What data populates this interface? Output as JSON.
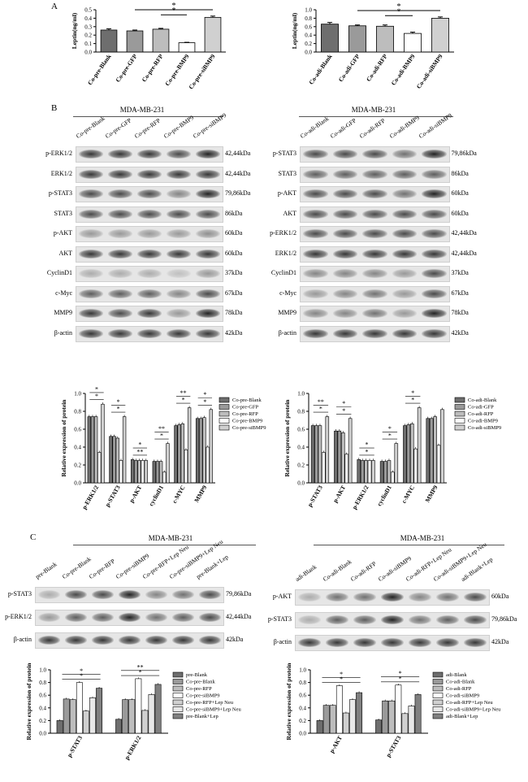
{
  "panel_letters": {
    "a": "A",
    "b": "B",
    "c": "C"
  },
  "titles": {
    "b_left": "MDA-MB-231",
    "b_right": "MDA-MB-231",
    "c_left": "MDA-MB-231",
    "c_right": "MDA-MB-231"
  },
  "blot_b_left": {
    "lanes": [
      "Co-pre-Blank",
      "Co-pre-GFP",
      "Co-pre-RFP",
      "Co-pre-BMP9",
      "Co-pre-siBMP9"
    ],
    "rows": [
      {
        "name": "p-ERK1/2",
        "kda": "42,44kDa",
        "intensity": [
          0.9,
          0.9,
          0.9,
          0.8,
          1.0
        ]
      },
      {
        "name": "ERK1/2",
        "kda": "42,44kDa",
        "intensity": [
          0.9,
          0.9,
          0.9,
          0.9,
          0.9
        ]
      },
      {
        "name": "p-STAT3",
        "kda": "79,86kDa",
        "intensity": [
          0.8,
          0.8,
          0.8,
          0.5,
          1.0
        ]
      },
      {
        "name": "STAT3",
        "kda": "86kDa",
        "intensity": [
          0.8,
          0.8,
          0.8,
          0.8,
          0.8
        ]
      },
      {
        "name": "p-AKT",
        "kda": "60kDa",
        "intensity": [
          0.4,
          0.4,
          0.4,
          0.4,
          0.45
        ]
      },
      {
        "name": "AKT",
        "kda": "60kDa",
        "intensity": [
          0.9,
          0.9,
          0.9,
          0.9,
          0.9
        ]
      },
      {
        "name": "CyclinD1",
        "kda": "37kDa",
        "intensity": [
          0.3,
          0.3,
          0.3,
          0.2,
          0.4
        ]
      },
      {
        "name": "c-Myc",
        "kda": "67kDa",
        "intensity": [
          0.7,
          0.7,
          0.7,
          0.5,
          0.8
        ]
      },
      {
        "name": "MMP9",
        "kda": "78kDa",
        "intensity": [
          0.9,
          0.8,
          0.9,
          0.4,
          1.0
        ]
      },
      {
        "name": "β-actin",
        "kda": "42kDa",
        "intensity": [
          0.9,
          0.9,
          0.9,
          0.9,
          0.9
        ]
      }
    ]
  },
  "blot_b_right": {
    "lanes": [
      "Co-adi-Blank",
      "Co-adi-GFP",
      "Co-adi-RFP",
      "Co-adi-BMP9",
      "Co-adi-siBMP9"
    ],
    "rows": [
      {
        "name": "p-STAT3",
        "kda": "79,86kDa",
        "intensity": [
          0.8,
          0.8,
          0.8,
          0.6,
          1.0
        ]
      },
      {
        "name": "STAT3",
        "kda": "86kDa",
        "intensity": [
          0.7,
          0.7,
          0.7,
          0.7,
          0.7
        ]
      },
      {
        "name": "p-AKT",
        "kda": "60kDa",
        "intensity": [
          0.8,
          0.8,
          0.8,
          0.6,
          1.0
        ]
      },
      {
        "name": "AKT",
        "kda": "60kDa",
        "intensity": [
          0.8,
          0.8,
          0.8,
          0.8,
          0.8
        ]
      },
      {
        "name": "p-ERK1/2",
        "kda": "42,44kDa",
        "intensity": [
          0.8,
          0.8,
          0.8,
          0.8,
          0.8
        ]
      },
      {
        "name": "ERK1/2",
        "kda": "42,44kDa",
        "intensity": [
          0.9,
          0.9,
          0.9,
          0.9,
          0.9
        ]
      },
      {
        "name": "CyclinD1",
        "kda": "37kDa",
        "intensity": [
          0.5,
          0.5,
          0.5,
          0.4,
          0.8
        ]
      },
      {
        "name": "c-Myc",
        "kda": "67kDa",
        "intensity": [
          0.4,
          0.5,
          0.6,
          0.4,
          0.8
        ]
      },
      {
        "name": "MMP9",
        "kda": "78kDa",
        "intensity": [
          0.5,
          0.5,
          0.6,
          0.4,
          1.0
        ]
      },
      {
        "name": "β-actin",
        "kda": "42kDa",
        "intensity": [
          0.9,
          0.9,
          0.9,
          0.9,
          0.9
        ]
      }
    ]
  },
  "blot_c_left": {
    "lanes": [
      "pre-Blank",
      "Co-pre-Blank",
      "Co-pre-RFP",
      "Co-pre-siBMP9",
      "Co-pre-RFP+Lep Neu",
      "Co-pre-siBMP9+Lep Neu",
      "pre-Blank+Lep"
    ],
    "rows": [
      {
        "name": "p-STAT3",
        "kda": "79,86kDa",
        "intensity": [
          0.3,
          0.8,
          0.8,
          1.0,
          0.5,
          0.6,
          0.8
        ]
      },
      {
        "name": "p-ERK1/2",
        "kda": "42,44kDa",
        "intensity": [
          0.4,
          0.7,
          0.7,
          1.0,
          0.6,
          0.7,
          0.8
        ]
      },
      {
        "name": "β-actin",
        "kda": "42kDa",
        "intensity": [
          0.9,
          0.9,
          0.9,
          0.9,
          0.9,
          0.9,
          0.9
        ]
      }
    ]
  },
  "blot_c_right": {
    "lanes": [
      "adi-Blank",
      "Co-adi-Blank",
      "Co-adi-RFP",
      "Co-adi-siBMP9",
      "Co-adi-RFP+Lep Neu",
      "Co-adi-siBMP9+Lep Neu",
      "adi-Blank+Lep"
    ],
    "rows": [
      {
        "name": "p-AKT",
        "kda": "60kDa",
        "intensity": [
          0.3,
          0.6,
          0.6,
          1.0,
          0.5,
          0.6,
          0.8
        ]
      },
      {
        "name": "p-STAT3",
        "kda": "79,86kDa",
        "intensity": [
          0.3,
          0.7,
          0.7,
          1.0,
          0.6,
          0.7,
          0.8
        ]
      },
      {
        "name": "β-actin",
        "kda": "42kDa",
        "intensity": [
          0.9,
          0.9,
          0.9,
          0.9,
          0.9,
          0.9,
          0.9
        ]
      }
    ]
  },
  "chart_data": [
    {
      "id": "A-left",
      "type": "bar",
      "categories": [
        "Co-pre-Blank",
        "Co-pre-GFP",
        "Co-pre-RFP",
        "Co-pre-BMP9",
        "Co-pre-siBMP9"
      ],
      "values": [
        0.26,
        0.25,
        0.27,
        0.11,
        0.41
      ],
      "errors": [
        0.015,
        0.01,
        0.01,
        0.005,
        0.015
      ],
      "ylabel": "Leptin(ng/ml)",
      "ylim": [
        0,
        0.5
      ],
      "yticks": [
        "0.0",
        "0.1",
        "0.2",
        "0.3",
        "0.4",
        "0.5"
      ],
      "significance": [
        {
          "from": 2,
          "to": 3,
          "label": "*"
        },
        {
          "from": 1,
          "to": 4,
          "label": "*"
        }
      ]
    },
    {
      "id": "A-right",
      "type": "bar",
      "categories": [
        "Co-adi-Blank",
        "Co-adi-GFP",
        "Co-adi-RFP",
        "Co-adi-BMP9",
        "Co-adi-siBMP9"
      ],
      "values": [
        0.66,
        0.62,
        0.61,
        0.44,
        0.8
      ],
      "errors": [
        0.04,
        0.02,
        0.03,
        0.03,
        0.03
      ],
      "ylabel": "Leptin(ng/ml)",
      "ylim": [
        0,
        1.0
      ],
      "yticks": [
        "0.0",
        "0.2",
        "0.4",
        "0.6",
        "0.8",
        "1.0"
      ],
      "significance": [
        {
          "from": 2,
          "to": 3,
          "label": "*"
        },
        {
          "from": 1,
          "to": 4,
          "label": "*"
        }
      ]
    },
    {
      "id": "B-left",
      "type": "bar",
      "categories": [
        "p-ERK1/2",
        "p-STAT3",
        "p-AKT",
        "cyclinD1",
        "c-MYC",
        "MMP9"
      ],
      "series": [
        {
          "name": "Co-pre-Blank",
          "values": [
            0.74,
            0.52,
            0.26,
            0.24,
            0.64,
            0.72
          ]
        },
        {
          "name": "Co-pre-GFP",
          "values": [
            0.74,
            0.52,
            0.25,
            0.24,
            0.65,
            0.72
          ]
        },
        {
          "name": "Co-pre-RFP",
          "values": [
            0.74,
            0.5,
            0.25,
            0.24,
            0.66,
            0.73
          ]
        },
        {
          "name": "Co-pre-BMP9",
          "values": [
            0.34,
            0.25,
            0.25,
            0.12,
            0.37,
            0.4
          ]
        },
        {
          "name": "Co-pre-siBMP9",
          "values": [
            0.88,
            0.74,
            0.25,
            0.44,
            0.84,
            0.82
          ]
        }
      ],
      "ylabel": "Relative expression of protein",
      "ylim": [
        0,
        1.0
      ],
      "yticks": [
        "0.0",
        "0.2",
        "0.4",
        "0.6",
        "0.8",
        "1.0"
      ],
      "sig_marks": [
        "*",
        "*",
        "*",
        "*",
        "**",
        "*",
        "*",
        "**",
        "*",
        "**",
        "*",
        "*"
      ]
    },
    {
      "id": "B-right",
      "type": "bar",
      "categories": [
        "p-STAT3",
        "p-AKT",
        "p-ERK1/2",
        "cyclinD1",
        "c-MYC",
        "MMP9"
      ],
      "series": [
        {
          "name": "Co-adi-Blank",
          "values": [
            0.64,
            0.58,
            0.26,
            0.24,
            0.64,
            0.72
          ]
        },
        {
          "name": "Co-adi-GFP",
          "values": [
            0.64,
            0.58,
            0.25,
            0.24,
            0.65,
            0.72
          ]
        },
        {
          "name": "Co-adi-RFP",
          "values": [
            0.64,
            0.56,
            0.25,
            0.25,
            0.66,
            0.74
          ]
        },
        {
          "name": "Co-adi-BMP9",
          "values": [
            0.34,
            0.32,
            0.25,
            0.12,
            0.38,
            0.42
          ]
        },
        {
          "name": "Co-adi-siBMP9",
          "values": [
            0.74,
            0.72,
            0.25,
            0.44,
            0.84,
            0.82
          ]
        }
      ],
      "ylabel": "Relative expression of protein",
      "ylim": [
        0,
        1.0
      ],
      "yticks": [
        "0.0",
        "0.2",
        "0.4",
        "0.6",
        "0.8",
        "1.0"
      ],
      "sig_marks": [
        "*",
        "**",
        "*",
        "*",
        "*",
        "*",
        "*",
        "*",
        "*",
        "*"
      ]
    },
    {
      "id": "C-left",
      "type": "bar",
      "categories": [
        "p-STAT3",
        "p-ERK1/2"
      ],
      "series": [
        {
          "name": "pre-Blank",
          "values": [
            0.2,
            0.22
          ]
        },
        {
          "name": "Co-pre-Blank",
          "values": [
            0.54,
            0.53
          ]
        },
        {
          "name": "Co-pre-RFP",
          "values": [
            0.53,
            0.53
          ]
        },
        {
          "name": "Co-pre-siBMP9",
          "values": [
            0.8,
            0.86
          ]
        },
        {
          "name": "Co-pre-RFP+Lep Neu",
          "values": [
            0.35,
            0.36
          ]
        },
        {
          "name": "Co-pre-siBMP9+Lep Neu",
          "values": [
            0.56,
            0.61
          ]
        },
        {
          "name": "pre-Blank+Lep",
          "values": [
            0.71,
            0.77
          ]
        }
      ],
      "ylabel": "Relative expression of protein",
      "ylim": [
        0,
        1.0
      ],
      "yticks": [
        "0.0",
        "0.2",
        "0.4",
        "0.6",
        "0.8",
        "1.0"
      ],
      "sig_marks": [
        "*",
        "*",
        "*",
        "**"
      ]
    },
    {
      "id": "C-right",
      "type": "bar",
      "categories": [
        "p-AKT",
        "p-STAT3"
      ],
      "series": [
        {
          "name": "adi-Blank",
          "values": [
            0.2,
            0.21
          ]
        },
        {
          "name": "Co-adi-Blank",
          "values": [
            0.44,
            0.51
          ]
        },
        {
          "name": "Co-adi-RFP",
          "values": [
            0.44,
            0.51
          ]
        },
        {
          "name": "Co-adi-siBMP9",
          "values": [
            0.75,
            0.76
          ]
        },
        {
          "name": "Co-adi-RFP+Lep Neu",
          "values": [
            0.32,
            0.31
          ]
        },
        {
          "name": "Co-adi-siBMP9+Lep Neu",
          "values": [
            0.53,
            0.43
          ]
        },
        {
          "name": "adi-Blank+Lep",
          "values": [
            0.64,
            0.61
          ]
        }
      ],
      "ylabel": "Relative expression of protein",
      "ylim": [
        0,
        1.0
      ],
      "yticks": [
        "0.0",
        "0.2",
        "0.4",
        "0.6",
        "0.8",
        "1.0"
      ],
      "sig_marks": [
        "*",
        "*",
        "*",
        "*"
      ]
    }
  ]
}
